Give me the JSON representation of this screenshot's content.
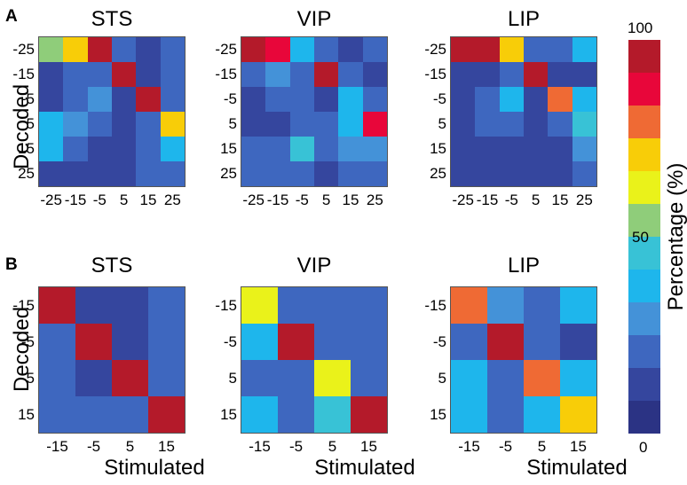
{
  "panels": {
    "a_letter": "A",
    "b_letter": "B",
    "ylabel": "Decoded",
    "xlabel": "Stimulated"
  },
  "colorbar": {
    "label": "Percentage (%)",
    "ticks": [
      "100",
      "50",
      "0"
    ],
    "colors": [
      "#b41a2a",
      "#e8063a",
      "#ef6a34",
      "#f8cd08",
      "#eaf21a",
      "#8fcd7a",
      "#38c2d6",
      "#1eb6ec",
      "#4492d8",
      "#3e67bf",
      "#35469e",
      "#2b3384"
    ]
  },
  "chart_data": [
    {
      "type": "heatmap",
      "title": "STS",
      "panel": "A",
      "x_ticks": [
        "-25",
        "-15",
        "-5",
        "5",
        "15",
        "25"
      ],
      "y_ticks": [
        "-25",
        "-15",
        "-5",
        "5",
        "15",
        "25"
      ],
      "values": [
        [
          55,
          70,
          92,
          18,
          15,
          22
        ],
        [
          12,
          20,
          22,
          95,
          15,
          20
        ],
        [
          15,
          20,
          30,
          12,
          95,
          20
        ],
        [
          40,
          28,
          20,
          15,
          20,
          75
        ],
        [
          35,
          25,
          12,
          10,
          20,
          35
        ],
        [
          15,
          15,
          15,
          15,
          20,
          25
        ]
      ]
    },
    {
      "type": "heatmap",
      "title": "VIP",
      "panel": "A",
      "x_ticks": [
        "-25",
        "-15",
        "-5",
        "5",
        "15",
        "25"
      ],
      "y_ticks": [
        "-25",
        "-15",
        "-5",
        "5",
        "15",
        "25"
      ],
      "values": [
        [
          92,
          85,
          40,
          20,
          15,
          18
        ],
        [
          20,
          30,
          25,
          95,
          25,
          15
        ],
        [
          15,
          20,
          20,
          15,
          40,
          20
        ],
        [
          12,
          12,
          20,
          20,
          35,
          85
        ],
        [
          25,
          25,
          50,
          25,
          30,
          30
        ],
        [
          20,
          20,
          20,
          12,
          20,
          22
        ]
      ]
    },
    {
      "type": "heatmap",
      "title": "LIP",
      "panel": "A",
      "x_ticks": [
        "-25",
        "-15",
        "-5",
        "5",
        "15",
        "25"
      ],
      "y_ticks": [
        "-25",
        "-15",
        "-5",
        "5",
        "15",
        "25"
      ],
      "values": [
        [
          95,
          95,
          70,
          25,
          20,
          35
        ],
        [
          15,
          15,
          20,
          95,
          15,
          15
        ],
        [
          15,
          20,
          35,
          15,
          80,
          40
        ],
        [
          15,
          20,
          25,
          15,
          25,
          50
        ],
        [
          15,
          15,
          15,
          12,
          15,
          28
        ],
        [
          15,
          15,
          15,
          15,
          15,
          20
        ]
      ]
    },
    {
      "type": "heatmap",
      "title": "STS",
      "panel": "B",
      "x_ticks": [
        "-15",
        "-5",
        "5",
        "15"
      ],
      "y_ticks": [
        "-15",
        "-5",
        "5",
        "15"
      ],
      "values": [
        [
          92,
          15,
          15,
          20
        ],
        [
          22,
          95,
          12,
          18
        ],
        [
          25,
          10,
          95,
          20
        ],
        [
          20,
          20,
          20,
          97
        ]
      ]
    },
    {
      "type": "heatmap",
      "title": "VIP",
      "panel": "B",
      "x_ticks": [
        "-15",
        "-5",
        "5",
        "15"
      ],
      "y_ticks": [
        "-15",
        "-5",
        "5",
        "15"
      ],
      "values": [
        [
          62,
          20,
          25,
          18
        ],
        [
          40,
          95,
          20,
          18
        ],
        [
          20,
          20,
          60,
          18
        ],
        [
          35,
          18,
          50,
          95
        ]
      ]
    },
    {
      "type": "heatmap",
      "title": "LIP",
      "panel": "B",
      "x_ticks": [
        "-15",
        "-5",
        "5",
        "15"
      ],
      "y_ticks": [
        "-15",
        "-5",
        "5",
        "15"
      ],
      "values": [
        [
          80,
          32,
          25,
          38
        ],
        [
          18,
          95,
          22,
          15
        ],
        [
          38,
          18,
          80,
          35
        ],
        [
          38,
          18,
          35,
          72
        ]
      ]
    }
  ]
}
